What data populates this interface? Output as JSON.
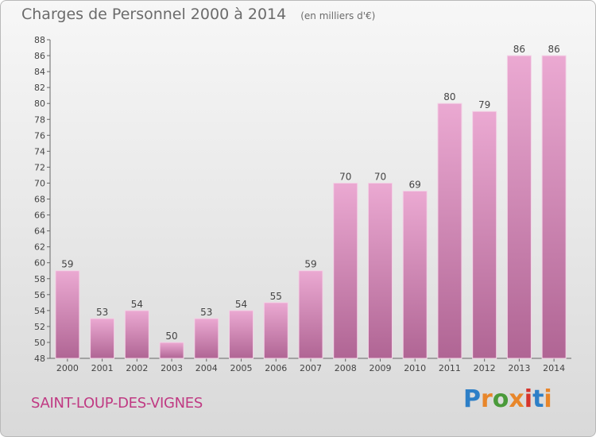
{
  "header": {
    "title": "Charges de Personnel 2000 à 2014",
    "subtitle": "(en milliers d'€)"
  },
  "footer": {
    "town": "SAINT-LOUP-DES-VIGNES",
    "logo_text": "Proxiti",
    "logo_colors": [
      "#2d7fc7",
      "#e8862a",
      "#4a9a3a",
      "#e8862a",
      "#d6342b",
      "#2d7fc7",
      "#e8862a"
    ]
  },
  "colors": {
    "bar_top": "#eba9d2",
    "bar_bottom": "#b06594",
    "title": "#6b6b6b",
    "town": "#c03a83"
  },
  "chart_data": {
    "type": "bar",
    "categories": [
      "2000",
      "2001",
      "2002",
      "2003",
      "2004",
      "2005",
      "2006",
      "2007",
      "2008",
      "2009",
      "2010",
      "2011",
      "2012",
      "2013",
      "2014"
    ],
    "values": [
      59,
      53,
      54,
      50,
      53,
      54,
      55,
      59,
      70,
      70,
      69,
      80,
      79,
      86,
      86
    ],
    "title": "Charges de Personnel 2000 à 2014",
    "subtitle": "(en milliers d'€)",
    "xlabel": "",
    "ylabel": "",
    "ylim": [
      48,
      88
    ],
    "ytick_step": 2,
    "grid": false,
    "data_labels": true
  }
}
